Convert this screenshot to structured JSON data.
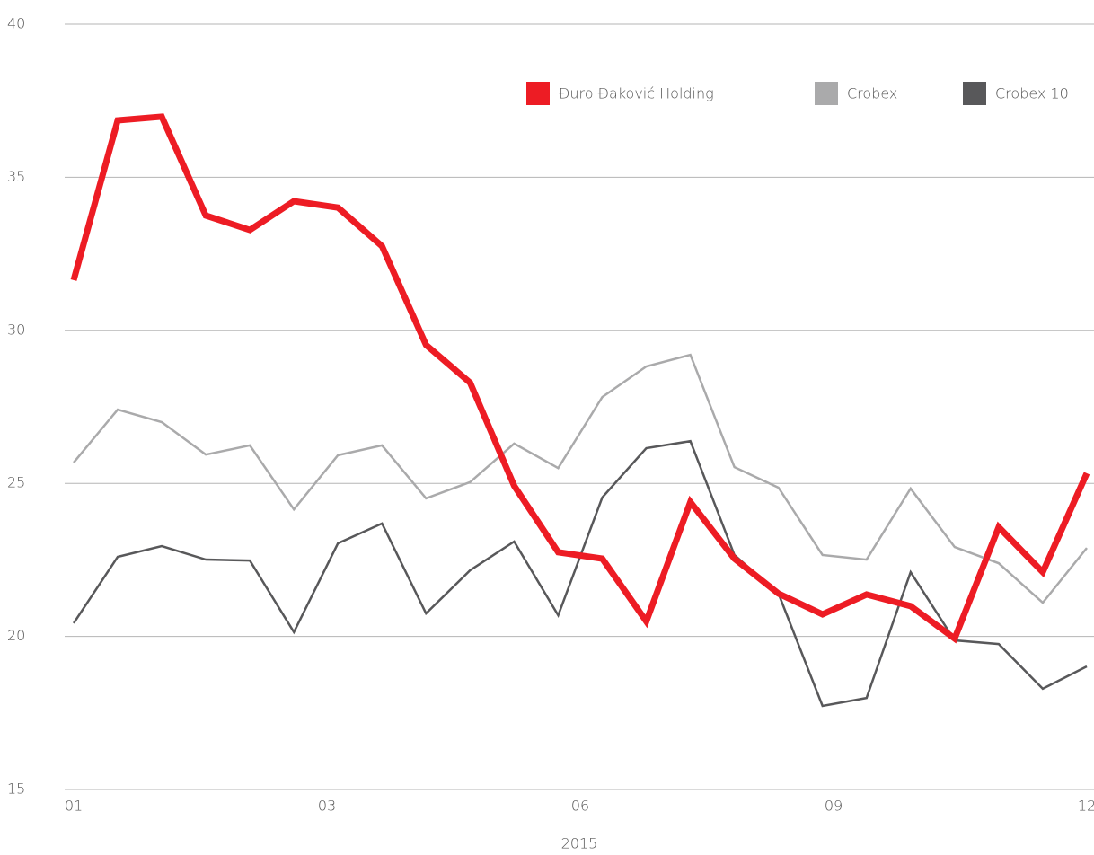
{
  "chart_data": {
    "type": "line",
    "xlabel": "2015",
    "x": [
      0,
      1,
      2,
      3,
      4,
      5,
      6,
      7,
      8,
      9,
      10,
      11,
      12,
      13,
      14,
      15,
      16,
      17,
      18,
      19,
      20,
      21,
      22,
      23
    ],
    "xlim": [
      0,
      23
    ],
    "xticks": [
      {
        "value": 0,
        "label": "01"
      },
      {
        "value": 5.75,
        "label": "03"
      },
      {
        "value": 11.5,
        "label": "06"
      },
      {
        "value": 17.25,
        "label": "09"
      },
      {
        "value": 23,
        "label": "12"
      }
    ],
    "ylim": [
      15,
      40
    ],
    "yticks": [
      15,
      20,
      25,
      30,
      35,
      40
    ],
    "grid": true,
    "legend": "top-right",
    "series": [
      {
        "name": "Đuro Đaković Holding",
        "color": "#ed1c24",
        "values": [
          31.64,
          36.86,
          36.98,
          33.75,
          33.28,
          34.22,
          34.01,
          32.75,
          29.52,
          28.29,
          24.92,
          22.75,
          22.54,
          20.49,
          24.39,
          22.54,
          21.4,
          20.72,
          21.37,
          20.99,
          19.93,
          23.57,
          22.1,
          25.33
        ]
      },
      {
        "name": "Crobex",
        "color": "#aaaaab",
        "values": [
          25.68,
          27.41,
          27.0,
          25.94,
          26.24,
          24.15,
          25.92,
          26.24,
          24.51,
          25.04,
          26.3,
          25.5,
          27.82,
          28.82,
          29.2,
          25.53,
          24.86,
          22.66,
          22.51,
          24.83,
          22.92,
          22.39,
          21.1,
          22.89
        ]
      },
      {
        "name": "Crobex 10",
        "color": "#58585a",
        "values": [
          20.43,
          22.6,
          22.95,
          22.51,
          22.48,
          20.14,
          23.04,
          23.69,
          20.75,
          22.16,
          23.1,
          20.69,
          24.54,
          26.15,
          26.38,
          22.66,
          21.4,
          17.73,
          17.99,
          22.1,
          19.87,
          19.75,
          18.29,
          19.02
        ]
      }
    ]
  }
}
